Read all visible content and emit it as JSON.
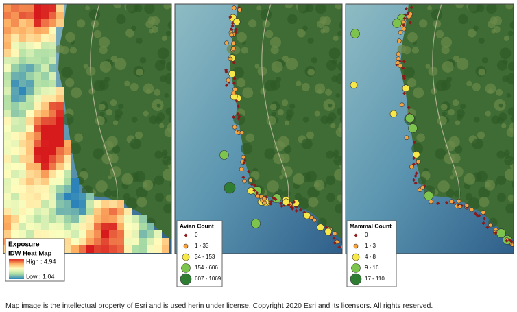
{
  "panels": [
    {
      "legend": {
        "title": "Exposure",
        "subtitle": "IDW Heat Map",
        "high": "High : 4.94",
        "low": "Low : 1.04"
      }
    },
    {
      "legend": {
        "title": "Avian Count",
        "items": [
          "0",
          "1 - 33",
          "34 - 153",
          "154 - 606",
          "607 - 1069"
        ]
      }
    },
    {
      "legend": {
        "title": "Mammal Count",
        "items": [
          "0",
          "1 - 3",
          "4 - 8",
          "9 - 16",
          "17 - 110"
        ]
      }
    }
  ],
  "caption": "Map image is the intellectual property of Esri and is used herin under license. Copyright 2020 Esri and its licensors. All rights reserved."
}
